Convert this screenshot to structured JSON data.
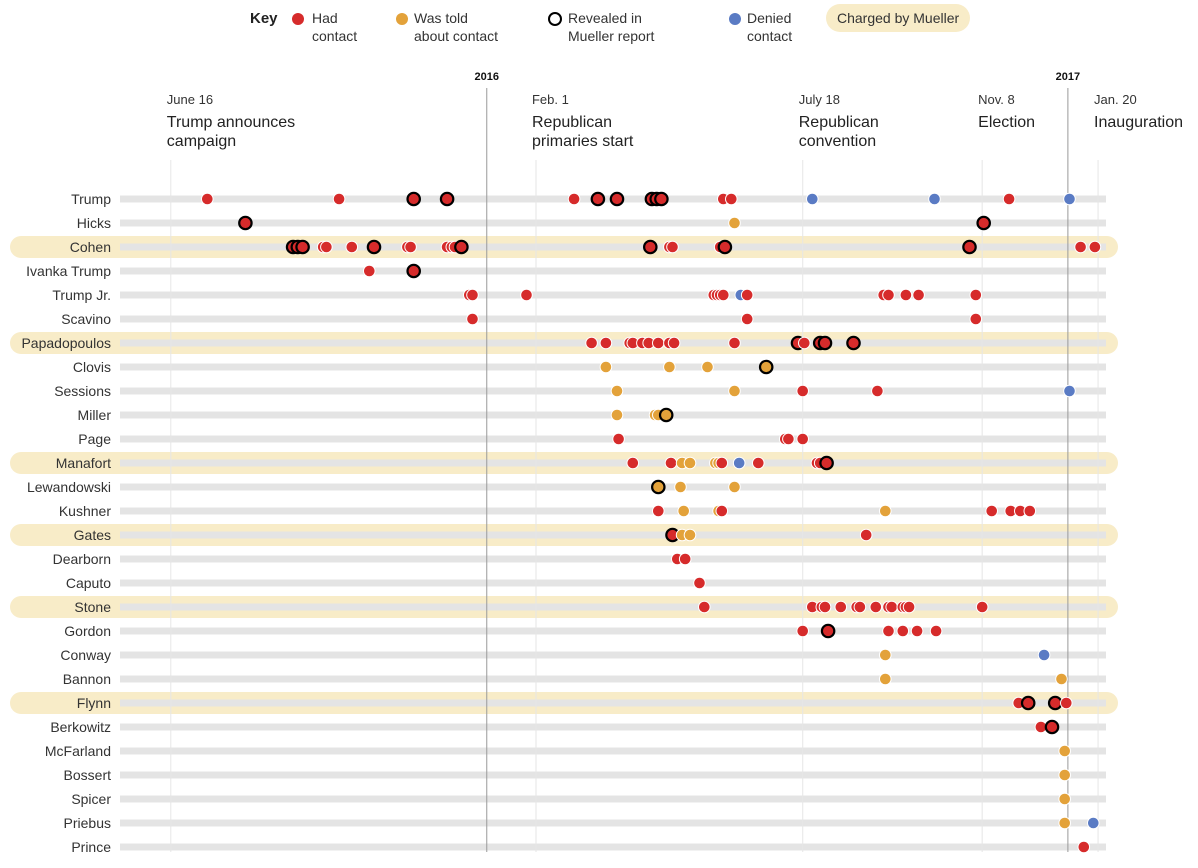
{
  "key": {
    "title": "Key",
    "items": [
      {
        "label": "Had\ncontact",
        "color": "#d62b2b",
        "ring": false
      },
      {
        "label": "Was told\nabout contact",
        "color": "#e3a23a",
        "ring": false
      },
      {
        "label": "Revealed in\nMueller report",
        "color": "#ffffff",
        "ring": true
      },
      {
        "label": "Denied\ncontact",
        "color": "#5a7bc4",
        "ring": false
      }
    ],
    "charged_label": "Charged by Mueller"
  },
  "colors": {
    "had": "#d62b2b",
    "told": "#e3a23a",
    "denied": "#5a7bc4",
    "charged_band": "#f8ecc8",
    "track": "#e4e4e4"
  },
  "chart_data": {
    "type": "scatter",
    "x_unit": "date",
    "x_range": [
      "2015-05-15",
      "2017-01-25"
    ],
    "years": [
      {
        "label": "2016",
        "date": "2016-01-01"
      },
      {
        "label": "2017",
        "date": "2017-01-01"
      }
    ],
    "milestones": [
      {
        "date": "2015-06-16",
        "label": "June 16",
        "title": "Trump announces\ncampaign"
      },
      {
        "date": "2016-02-01",
        "label": "Feb. 1",
        "title": "Republican\nprimaries start"
      },
      {
        "date": "2016-07-18",
        "label": "July 18",
        "title": "Republican\nconvention"
      },
      {
        "date": "2016-11-08",
        "label": "Nov. 8",
        "title": "Election"
      },
      {
        "date": "2017-01-20",
        "label": "Jan. 20",
        "title": "Inauguration"
      }
    ],
    "rows": [
      {
        "name": "Trump",
        "charged": false,
        "contacts": [
          {
            "date": "2015-07-09",
            "type": "had"
          },
          {
            "date": "2015-09-30",
            "type": "had"
          },
          {
            "date": "2015-11-16",
            "type": "had",
            "revealed": true
          },
          {
            "date": "2015-12-07",
            "type": "had",
            "revealed": true
          },
          {
            "date": "2016-02-25",
            "type": "had"
          },
          {
            "date": "2016-03-11",
            "type": "had",
            "revealed": true
          },
          {
            "date": "2016-03-23",
            "type": "had",
            "revealed": true
          },
          {
            "date": "2016-04-14",
            "type": "had",
            "revealed": true
          },
          {
            "date": "2016-04-17",
            "type": "had",
            "revealed": true
          },
          {
            "date": "2016-04-20",
            "type": "had",
            "revealed": true
          },
          {
            "date": "2016-05-29",
            "type": "had"
          },
          {
            "date": "2016-06-03",
            "type": "had"
          },
          {
            "date": "2016-07-24",
            "type": "denied"
          },
          {
            "date": "2016-10-09",
            "type": "denied"
          },
          {
            "date": "2016-11-25",
            "type": "had"
          },
          {
            "date": "2017-01-02",
            "type": "denied"
          }
        ]
      },
      {
        "name": "Hicks",
        "charged": false,
        "contacts": [
          {
            "date": "2015-08-02",
            "type": "had",
            "revealed": true
          },
          {
            "date": "2016-06-05",
            "type": "told"
          },
          {
            "date": "2016-11-09",
            "type": "had",
            "revealed": true
          }
        ]
      },
      {
        "name": "Cohen",
        "charged": true,
        "contacts": [
          {
            "date": "2015-09-01",
            "type": "had",
            "revealed": true
          },
          {
            "date": "2015-09-04",
            "type": "had",
            "revealed": true
          },
          {
            "date": "2015-09-07",
            "type": "had",
            "revealed": true
          },
          {
            "date": "2015-09-20",
            "type": "had"
          },
          {
            "date": "2015-09-22",
            "type": "had"
          },
          {
            "date": "2015-10-08",
            "type": "had"
          },
          {
            "date": "2015-10-22",
            "type": "had",
            "revealed": true
          },
          {
            "date": "2015-11-12",
            "type": "had"
          },
          {
            "date": "2015-11-14",
            "type": "had"
          },
          {
            "date": "2015-12-07",
            "type": "had"
          },
          {
            "date": "2015-12-10",
            "type": "had"
          },
          {
            "date": "2015-12-12",
            "type": "had"
          },
          {
            "date": "2015-12-16",
            "type": "had",
            "revealed": true
          },
          {
            "date": "2016-04-13",
            "type": "had",
            "revealed": true
          },
          {
            "date": "2016-04-25",
            "type": "had"
          },
          {
            "date": "2016-04-27",
            "type": "had"
          },
          {
            "date": "2016-05-27",
            "type": "had"
          },
          {
            "date": "2016-05-30",
            "type": "had",
            "revealed": true
          },
          {
            "date": "2016-10-31",
            "type": "had",
            "revealed": true
          },
          {
            "date": "2017-01-09",
            "type": "had"
          },
          {
            "date": "2017-01-18",
            "type": "had"
          }
        ]
      },
      {
        "name": "Ivanka Trump",
        "charged": false,
        "contacts": [
          {
            "date": "2015-10-19",
            "type": "had"
          },
          {
            "date": "2015-11-16",
            "type": "had",
            "revealed": true
          }
        ]
      },
      {
        "name": "Trump Jr.",
        "charged": false,
        "contacts": [
          {
            "date": "2015-12-21",
            "type": "had"
          },
          {
            "date": "2015-12-23",
            "type": "had"
          },
          {
            "date": "2016-01-26",
            "type": "had"
          },
          {
            "date": "2016-05-23",
            "type": "had"
          },
          {
            "date": "2016-05-25",
            "type": "had"
          },
          {
            "date": "2016-05-27",
            "type": "had"
          },
          {
            "date": "2016-05-29",
            "type": "had"
          },
          {
            "date": "2016-06-09",
            "type": "denied"
          },
          {
            "date": "2016-06-13",
            "type": "had"
          },
          {
            "date": "2016-09-07",
            "type": "had"
          },
          {
            "date": "2016-09-10",
            "type": "had"
          },
          {
            "date": "2016-09-21",
            "type": "had"
          },
          {
            "date": "2016-09-29",
            "type": "had"
          },
          {
            "date": "2016-11-04",
            "type": "had"
          }
        ]
      },
      {
        "name": "Scavino",
        "charged": false,
        "contacts": [
          {
            "date": "2015-12-23",
            "type": "had"
          },
          {
            "date": "2016-06-13",
            "type": "had"
          },
          {
            "date": "2016-11-04",
            "type": "had"
          }
        ]
      },
      {
        "name": "Papadopoulos",
        "charged": true,
        "contacts": [
          {
            "date": "2016-03-07",
            "type": "had"
          },
          {
            "date": "2016-03-16",
            "type": "had"
          },
          {
            "date": "2016-03-31",
            "type": "had"
          },
          {
            "date": "2016-04-02",
            "type": "had"
          },
          {
            "date": "2016-04-08",
            "type": "had"
          },
          {
            "date": "2016-04-12",
            "type": "had"
          },
          {
            "date": "2016-04-18",
            "type": "had"
          },
          {
            "date": "2016-04-25",
            "type": "had"
          },
          {
            "date": "2016-04-28",
            "type": "had"
          },
          {
            "date": "2016-06-05",
            "type": "had"
          },
          {
            "date": "2016-07-15",
            "type": "had",
            "revealed": true
          },
          {
            "date": "2016-07-19",
            "type": "had"
          },
          {
            "date": "2016-07-29",
            "type": "had",
            "revealed": true
          },
          {
            "date": "2016-08-01",
            "type": "had",
            "revealed": true
          },
          {
            "date": "2016-08-19",
            "type": "had",
            "revealed": true
          }
        ]
      },
      {
        "name": "Clovis",
        "charged": false,
        "contacts": [
          {
            "date": "2016-03-16",
            "type": "told"
          },
          {
            "date": "2016-04-25",
            "type": "told"
          },
          {
            "date": "2016-05-19",
            "type": "told"
          },
          {
            "date": "2016-06-25",
            "type": "told",
            "revealed": true
          }
        ]
      },
      {
        "name": "Sessions",
        "charged": false,
        "contacts": [
          {
            "date": "2016-03-23",
            "type": "told"
          },
          {
            "date": "2016-06-05",
            "type": "told"
          },
          {
            "date": "2016-07-18",
            "type": "had"
          },
          {
            "date": "2016-09-03",
            "type": "had"
          },
          {
            "date": "2017-01-02",
            "type": "denied"
          }
        ]
      },
      {
        "name": "Miller",
        "charged": false,
        "contacts": [
          {
            "date": "2016-03-23",
            "type": "told"
          },
          {
            "date": "2016-04-16",
            "type": "told"
          },
          {
            "date": "2016-04-18",
            "type": "told"
          },
          {
            "date": "2016-04-23",
            "type": "told",
            "revealed": true
          }
        ]
      },
      {
        "name": "Page",
        "charged": false,
        "contacts": [
          {
            "date": "2016-03-24",
            "type": "had"
          },
          {
            "date": "2016-07-07",
            "type": "had"
          },
          {
            "date": "2016-07-09",
            "type": "had"
          },
          {
            "date": "2016-07-18",
            "type": "had"
          }
        ]
      },
      {
        "name": "Manafort",
        "charged": true,
        "contacts": [
          {
            "date": "2016-04-02",
            "type": "had"
          },
          {
            "date": "2016-04-26",
            "type": "had"
          },
          {
            "date": "2016-05-03",
            "type": "told"
          },
          {
            "date": "2016-05-08",
            "type": "told"
          },
          {
            "date": "2016-05-24",
            "type": "told"
          },
          {
            "date": "2016-05-26",
            "type": "told"
          },
          {
            "date": "2016-05-28",
            "type": "had"
          },
          {
            "date": "2016-06-08",
            "type": "denied"
          },
          {
            "date": "2016-06-20",
            "type": "had"
          },
          {
            "date": "2016-07-27",
            "type": "had"
          },
          {
            "date": "2016-07-29",
            "type": "had"
          },
          {
            "date": "2016-08-02",
            "type": "had",
            "revealed": true
          }
        ]
      },
      {
        "name": "Lewandowski",
        "charged": false,
        "contacts": [
          {
            "date": "2016-04-18",
            "type": "told",
            "revealed": true
          },
          {
            "date": "2016-05-02",
            "type": "told"
          },
          {
            "date": "2016-06-05",
            "type": "told"
          }
        ]
      },
      {
        "name": "Kushner",
        "charged": false,
        "contacts": [
          {
            "date": "2016-04-18",
            "type": "had"
          },
          {
            "date": "2016-05-04",
            "type": "told"
          },
          {
            "date": "2016-05-26",
            "type": "told"
          },
          {
            "date": "2016-05-28",
            "type": "had"
          },
          {
            "date": "2016-09-08",
            "type": "told"
          },
          {
            "date": "2016-11-14",
            "type": "had"
          },
          {
            "date": "2016-11-26",
            "type": "had"
          },
          {
            "date": "2016-12-02",
            "type": "had"
          },
          {
            "date": "2016-12-08",
            "type": "had"
          }
        ]
      },
      {
        "name": "Gates",
        "charged": true,
        "contacts": [
          {
            "date": "2016-04-27",
            "type": "had",
            "revealed": true
          },
          {
            "date": "2016-05-03",
            "type": "told"
          },
          {
            "date": "2016-05-08",
            "type": "told"
          },
          {
            "date": "2016-08-27",
            "type": "had"
          }
        ]
      },
      {
        "name": "Dearborn",
        "charged": false,
        "contacts": [
          {
            "date": "2016-04-30",
            "type": "had"
          },
          {
            "date": "2016-05-05",
            "type": "had"
          }
        ]
      },
      {
        "name": "Caputo",
        "charged": false,
        "contacts": [
          {
            "date": "2016-05-14",
            "type": "had"
          }
        ]
      },
      {
        "name": "Stone",
        "charged": true,
        "contacts": [
          {
            "date": "2016-05-17",
            "type": "had"
          },
          {
            "date": "2016-07-24",
            "type": "had"
          },
          {
            "date": "2016-07-30",
            "type": "had"
          },
          {
            "date": "2016-08-01",
            "type": "had"
          },
          {
            "date": "2016-08-11",
            "type": "had"
          },
          {
            "date": "2016-08-21",
            "type": "had"
          },
          {
            "date": "2016-08-23",
            "type": "had"
          },
          {
            "date": "2016-09-02",
            "type": "had"
          },
          {
            "date": "2016-09-10",
            "type": "had"
          },
          {
            "date": "2016-09-12",
            "type": "had"
          },
          {
            "date": "2016-09-19",
            "type": "had"
          },
          {
            "date": "2016-09-21",
            "type": "had"
          },
          {
            "date": "2016-09-23",
            "type": "had"
          },
          {
            "date": "2016-11-08",
            "type": "had"
          }
        ]
      },
      {
        "name": "Gordon",
        "charged": false,
        "contacts": [
          {
            "date": "2016-07-18",
            "type": "had"
          },
          {
            "date": "2016-08-03",
            "type": "had",
            "revealed": true
          },
          {
            "date": "2016-09-10",
            "type": "had"
          },
          {
            "date": "2016-09-19",
            "type": "had"
          },
          {
            "date": "2016-09-28",
            "type": "had"
          },
          {
            "date": "2016-10-10",
            "type": "had"
          }
        ]
      },
      {
        "name": "Conway",
        "charged": false,
        "contacts": [
          {
            "date": "2016-09-08",
            "type": "told"
          },
          {
            "date": "2016-12-17",
            "type": "denied"
          }
        ]
      },
      {
        "name": "Bannon",
        "charged": false,
        "contacts": [
          {
            "date": "2016-09-08",
            "type": "told"
          },
          {
            "date": "2016-12-28",
            "type": "told"
          }
        ]
      },
      {
        "name": "Flynn",
        "charged": true,
        "contacts": [
          {
            "date": "2016-12-01",
            "type": "had"
          },
          {
            "date": "2016-12-07",
            "type": "had",
            "revealed": true
          },
          {
            "date": "2016-12-24",
            "type": "had",
            "revealed": true
          },
          {
            "date": "2016-12-31",
            "type": "had"
          }
        ]
      },
      {
        "name": "Berkowitz",
        "charged": false,
        "contacts": [
          {
            "date": "2016-12-15",
            "type": "had"
          },
          {
            "date": "2016-12-22",
            "type": "had",
            "revealed": true
          }
        ]
      },
      {
        "name": "McFarland",
        "charged": false,
        "contacts": [
          {
            "date": "2016-12-30",
            "type": "told"
          }
        ]
      },
      {
        "name": "Bossert",
        "charged": false,
        "contacts": [
          {
            "date": "2016-12-30",
            "type": "told"
          }
        ]
      },
      {
        "name": "Spicer",
        "charged": false,
        "contacts": [
          {
            "date": "2016-12-30",
            "type": "told"
          }
        ]
      },
      {
        "name": "Priebus",
        "charged": false,
        "contacts": [
          {
            "date": "2016-12-30",
            "type": "told"
          },
          {
            "date": "2017-01-17",
            "type": "denied"
          }
        ]
      },
      {
        "name": "Prince",
        "charged": false,
        "contacts": [
          {
            "date": "2017-01-11",
            "type": "had"
          }
        ]
      }
    ]
  }
}
